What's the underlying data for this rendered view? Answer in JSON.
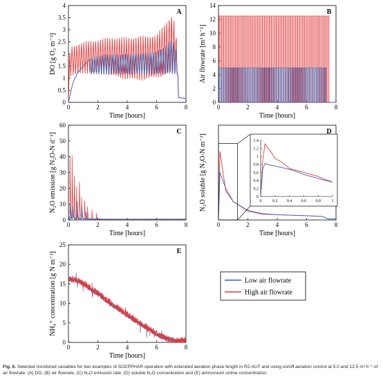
{
  "caption": {
    "label": "Fig. 6.",
    "text": "Selected monitored variables for two examples of SCEPPHAR operation with extended aeration phase length in R2-AUT and using on/off aeration control at 5.0 and 12.5 m³ h⁻¹ of air flowrate. (A) DO, (B) air flowrate, (C) N₂O emission rate, (D) soluble N₂O concentration and (E) ammonium online concentration."
  },
  "colors": {
    "low": "#3a5fb0",
    "high": "#e03a3a",
    "axis": "#000000"
  },
  "legend": {
    "placement": "right of panel E",
    "entries": [
      {
        "label": "Low air flowrate",
        "color": "#3a5fb0"
      },
      {
        "label": "High air flowrate",
        "color": "#e03a3a"
      }
    ]
  },
  "chart_data": [
    {
      "panel": "A",
      "type": "line",
      "xlabel": "Time [hours]",
      "ylabel": "DO [g O₂ m⁻³]",
      "xlim": [
        0,
        8
      ],
      "ylim": [
        0,
        4
      ],
      "xticks": [
        "0",
        "2",
        "4",
        "6",
        "8"
      ],
      "yticks": [
        "0",
        "0.5",
        "1",
        "1.5",
        "2",
        "2.5",
        "3",
        "3.5",
        "4"
      ],
      "series": [
        {
          "name": "Low air flowrate",
          "shape": "DO ramp to ~1.95 by 2 h, then on/off cycles between ~1.1 and ~2.0, rising to ~2.6 near 7 h; drop at 7.5 h",
          "x": [
            0,
            0.3,
            0.6,
            1,
            1.5,
            2,
            3,
            4,
            5,
            6,
            6.5,
            7,
            7.3,
            7.5,
            8
          ],
          "y": [
            0,
            0.8,
            1.2,
            1.5,
            1.8,
            1.95,
            2.0,
            2.0,
            2.05,
            2.1,
            2.3,
            2.6,
            2.5,
            0.2,
            0.15
          ]
        },
        {
          "name": "High air flowrate",
          "shape": "on/off cycles between ~1.0 and ~2.6, increasing to ~3.6 at 7 h; drop at 7.4 h",
          "x": [
            0,
            0.1,
            1,
            2,
            3,
            4,
            5,
            6,
            6.5,
            7,
            7.3,
            7.5,
            8
          ],
          "y": [
            0,
            2.3,
            2.5,
            2.6,
            2.7,
            2.7,
            2.75,
            2.8,
            3.2,
            3.65,
            3.3,
            0.2,
            0.15
          ]
        }
      ]
    },
    {
      "panel": "B",
      "type": "line",
      "xlabel": "Time [hours]",
      "ylabel": "Air flowrate [m³ h⁻¹]",
      "xlim": [
        0,
        8
      ],
      "ylim": [
        0,
        14
      ],
      "xticks": [
        "0",
        "2",
        "4",
        "6",
        "8"
      ],
      "yticks": [
        "0",
        "2",
        "4",
        "6",
        "8",
        "10",
        "12",
        "14"
      ],
      "series": [
        {
          "name": "Low air flowrate",
          "on_value": 5,
          "off_value": 0,
          "start": 0.05,
          "end": 7.4,
          "cycles": 45
        },
        {
          "name": "High air flowrate",
          "on_value": 12.5,
          "off_value": 0,
          "start": 0.05,
          "end": 7.6,
          "cycles": 48
        }
      ]
    },
    {
      "panel": "C",
      "type": "line",
      "xlabel": "Time [hours]",
      "ylabel": "N₂O emission [g N₂O-N d⁻¹]",
      "xlim": [
        0,
        8
      ],
      "ylim": [
        0,
        60
      ],
      "xticks": [
        "0",
        "2",
        "4",
        "6",
        "8"
      ],
      "yticks": [
        "0",
        "10",
        "20",
        "30",
        "40",
        "50",
        "60"
      ],
      "series": [
        {
          "name": "Low air flowrate",
          "peak_times": [
            0.1,
            0.3,
            0.6,
            0.9,
            1.2
          ],
          "peak_values": [
            12,
            9,
            11,
            8,
            5
          ],
          "baseline_after_2h": 0.4
        },
        {
          "name": "High air flowrate",
          "peak_times": [
            0.1,
            0.25,
            0.4,
            0.55,
            0.75,
            0.9,
            1.1,
            1.3,
            1.6,
            1.9
          ],
          "peak_values": [
            52,
            40,
            28,
            20,
            24,
            14,
            12,
            8,
            6,
            4
          ],
          "baseline_after_2h": 0.3
        }
      ]
    },
    {
      "panel": "D",
      "type": "line",
      "xlabel": "Time [hours]",
      "ylabel": "N₂O soluble [g N₂O-N m⁻³]",
      "xlim": [
        0,
        8
      ],
      "ylim": [
        0,
        1.8
      ],
      "xticks": [
        "0",
        "2",
        "4",
        "6",
        "8"
      ],
      "yticks": [],
      "series": [
        {
          "name": "Low air flowrate",
          "x": [
            0,
            0.1,
            0.5,
            1,
            2,
            3,
            4,
            5,
            6,
            7,
            7.5,
            8
          ],
          "y": [
            0,
            0.9,
            0.6,
            0.35,
            0.18,
            0.12,
            0.1,
            0.09,
            0.08,
            0.07,
            0.02,
            0.02
          ]
        },
        {
          "name": "High air flowrate",
          "x": [
            0,
            0.1,
            0.5,
            1,
            2,
            3,
            4,
            5,
            6,
            7,
            7.5,
            8
          ],
          "y": [
            0,
            1.3,
            0.55,
            0.35,
            0.17,
            0.11,
            0.1,
            0.09,
            0.08,
            0.07,
            0.02,
            0.02
          ]
        }
      ],
      "inset": {
        "xlim": [
          0,
          1
        ],
        "ylim": [
          0,
          1.4
        ],
        "xticks": [
          "0",
          "0.2",
          "0.4",
          "0.6",
          "0.8",
          "1"
        ],
        "yticks": [
          "0",
          "0.2",
          "0.4",
          "0.6",
          "0.8",
          "1",
          "1.2",
          "1.4"
        ],
        "series": [
          {
            "name": "Low air flowrate",
            "x": [
              0,
              0.03,
              0.06,
              0.1,
              0.2,
              0.3,
              0.4,
              0.5,
              0.6,
              0.7,
              0.8,
              0.9,
              1.0
            ],
            "y": [
              0,
              0.7,
              0.82,
              0.8,
              0.76,
              0.72,
              0.68,
              0.62,
              0.55,
              0.5,
              0.45,
              0.4,
              0.35
            ]
          },
          {
            "name": "High air flowrate",
            "x": [
              0,
              0.03,
              0.06,
              0.1,
              0.15,
              0.2,
              0.3,
              0.4,
              0.5,
              0.6,
              0.7,
              0.8,
              0.9,
              1.0
            ],
            "y": [
              0,
              0.9,
              1.32,
              1.2,
              1.1,
              0.95,
              0.85,
              0.7,
              0.65,
              0.6,
              0.55,
              0.5,
              0.42,
              0.38
            ]
          }
        ]
      }
    },
    {
      "panel": "E",
      "type": "line",
      "xlabel": "Time [hours]",
      "ylabel": "NH₄⁺ concentration [g N m⁻³]",
      "xlim": [
        0,
        8
      ],
      "ylim": [
        0,
        25
      ],
      "xticks": [
        "0",
        "2",
        "4",
        "6",
        "8"
      ],
      "yticks": [
        "0",
        "5",
        "10",
        "15",
        "20",
        "25"
      ],
      "series": [
        {
          "name": "Low air flowrate",
          "x": [
            0,
            0.5,
            1,
            2,
            3,
            4,
            5,
            6,
            6.5,
            7,
            7.5,
            8
          ],
          "y": [
            16.5,
            16,
            15,
            12.5,
            9.5,
            7,
            4.5,
            2.2,
            1.2,
            0.6,
            0.4,
            0.4
          ]
        },
        {
          "name": "High air flowrate",
          "x": [
            0,
            0.5,
            1,
            2,
            3,
            4,
            5,
            6,
            6.5,
            7,
            7.5,
            8
          ],
          "y": [
            16.5,
            16,
            15.2,
            12.7,
            9.7,
            7.2,
            4.6,
            2.3,
            1.3,
            0.6,
            0.4,
            0.4
          ]
        }
      ]
    }
  ]
}
